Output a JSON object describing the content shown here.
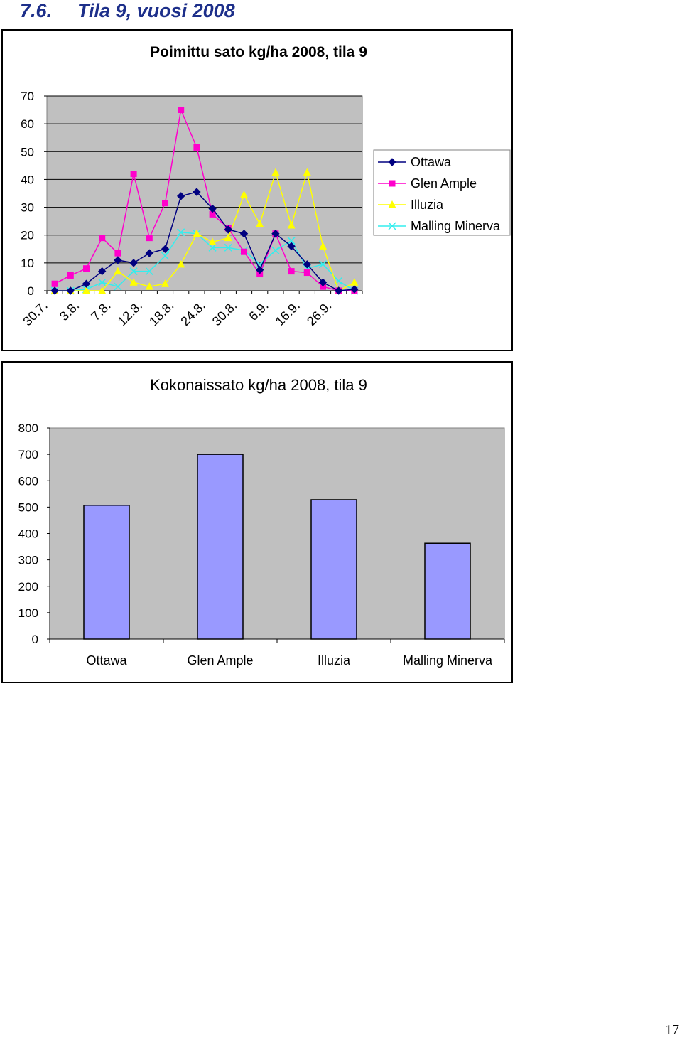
{
  "page": {
    "section_number": "7.6.",
    "section_title": "Tila 9, vuosi 2008",
    "page_number": "17"
  },
  "chart_data": [
    {
      "type": "line",
      "title": "Poimittu sato kg/ha 2008, tila 9",
      "x": [
        "30.7.",
        "",
        "3.8.",
        "",
        "7.8.",
        "",
        "12.8.",
        "",
        "18.8.",
        "",
        "24.8.",
        "",
        "30.8.",
        "",
        "6.9.",
        "",
        "16.9.",
        "",
        "26.9.",
        ""
      ],
      "ylim": [
        0,
        70
      ],
      "yticks": [
        0,
        10,
        20,
        30,
        40,
        50,
        60,
        70
      ],
      "legend_position": "right",
      "grid": true,
      "series": [
        {
          "name": "Ottawa",
          "color": "#000080",
          "marker": "diamond",
          "values": [
            0,
            0,
            2.5,
            7,
            11,
            10,
            13.5,
            15,
            34,
            35.5,
            29.5,
            22,
            20.5,
            7.5,
            20.5,
            16,
            9.5,
            3,
            0,
            0.5
          ]
        },
        {
          "name": "Glen Ample",
          "color": "#ff00cc",
          "marker": "square",
          "values": [
            2.5,
            5.5,
            8,
            19,
            13.5,
            42,
            19,
            31.5,
            65,
            51.5,
            27.5,
            22.5,
            14,
            6,
            20.5,
            7,
            6.5,
            1.5,
            0,
            0
          ]
        },
        {
          "name": "Illuzia",
          "color": "#ffff00",
          "marker": "triangle",
          "values": [
            0,
            0,
            0,
            0,
            7,
            3,
            1.5,
            2.5,
            9.5,
            20.5,
            17.5,
            19,
            34.5,
            24,
            42.5,
            23.5,
            42.5,
            16,
            0,
            3
          ]
        },
        {
          "name": "Malling Minerva",
          "color": "#33eeee",
          "marker": "x",
          "values": [
            0,
            0,
            0.5,
            3,
            1.5,
            7,
            7,
            12.5,
            21,
            20.5,
            15.5,
            15.5,
            14.5,
            9.5,
            14.5,
            18,
            8,
            9.5,
            3.5,
            0
          ]
        }
      ]
    },
    {
      "type": "bar",
      "title": "Kokonaissato kg/ha 2008, tila 9",
      "categories": [
        "Ottawa",
        "Glen Ample",
        "Illuzia",
        "Malling Minerva"
      ],
      "values": [
        507,
        700,
        528,
        363
      ],
      "ylim": [
        0,
        800
      ],
      "yticks": [
        0,
        100,
        200,
        300,
        400,
        500,
        600,
        700,
        800
      ],
      "bar_color": "#9999ff",
      "grid": false
    }
  ]
}
